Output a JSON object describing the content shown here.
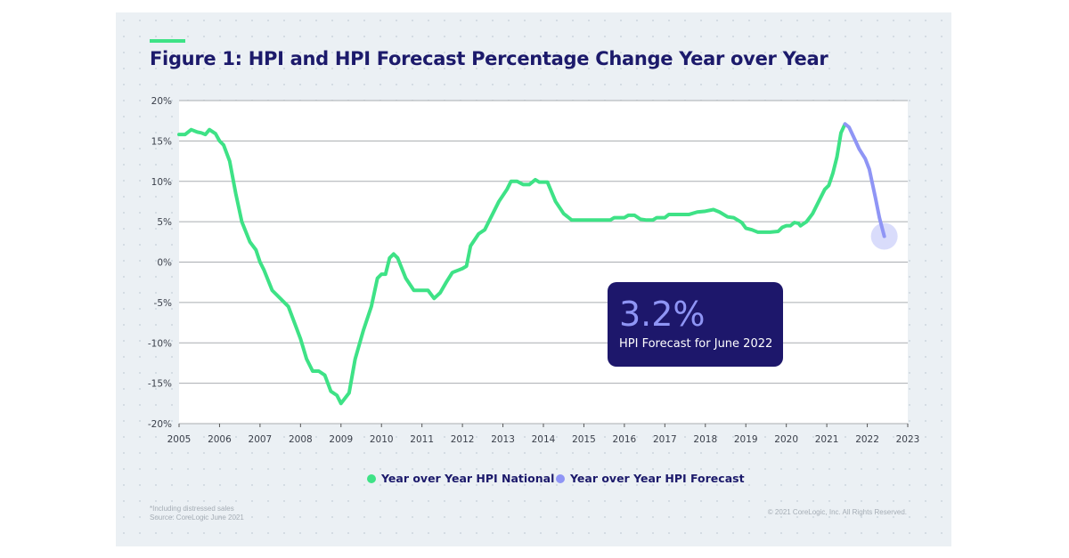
{
  "chart_data": {
    "type": "line",
    "title": "Figure 1: HPI and HPI Forecast Percentage Change Year over Year",
    "xlabel": "",
    "ylabel": "",
    "xlim": [
      2005,
      2023
    ],
    "ylim": [
      -20,
      20
    ],
    "x_ticks": [
      "2005",
      "2006",
      "2007",
      "2008",
      "2009",
      "2010",
      "2011",
      "2012",
      "2013",
      "2014",
      "2015",
      "2016",
      "2017",
      "2018",
      "2019",
      "2020",
      "2021",
      "2022",
      "2023"
    ],
    "y_ticks": [
      "20%",
      "15%",
      "10%",
      "5%",
      "0%",
      "-5%",
      "-10%",
      "-15%",
      "-20%"
    ],
    "grid": true,
    "legend_position": "bottom",
    "series": [
      {
        "name": "Year over Year HPI National",
        "color": "#3ee286",
        "points": [
          [
            2005.0,
            15.8
          ],
          [
            2005.15,
            15.8
          ],
          [
            2005.3,
            16.4
          ],
          [
            2005.45,
            16.1
          ],
          [
            2005.55,
            16.0
          ],
          [
            2005.65,
            15.8
          ],
          [
            2005.75,
            16.4
          ],
          [
            2005.9,
            15.9
          ],
          [
            2006.0,
            15.0
          ],
          [
            2006.1,
            14.5
          ],
          [
            2006.25,
            12.5
          ],
          [
            2006.4,
            8.5
          ],
          [
            2006.55,
            5
          ],
          [
            2006.75,
            2.5
          ],
          [
            2006.9,
            1.5
          ],
          [
            2007.0,
            0
          ],
          [
            2007.1,
            -1
          ],
          [
            2007.3,
            -3.5
          ],
          [
            2007.5,
            -4.5
          ],
          [
            2007.7,
            -5.5
          ],
          [
            2007.85,
            -7.5
          ],
          [
            2008.0,
            -9.5
          ],
          [
            2008.15,
            -12
          ],
          [
            2008.3,
            -13.5
          ],
          [
            2008.45,
            -13.5
          ],
          [
            2008.6,
            -14
          ],
          [
            2008.75,
            -16
          ],
          [
            2008.9,
            -16.5
          ],
          [
            2009.0,
            -17.5
          ],
          [
            2009.2,
            -16.2
          ],
          [
            2009.35,
            -12
          ],
          [
            2009.55,
            -8.5
          ],
          [
            2009.75,
            -5.5
          ],
          [
            2009.9,
            -2
          ],
          [
            2010.0,
            -1.5
          ],
          [
            2010.1,
            -1.5
          ],
          [
            2010.2,
            0.5
          ],
          [
            2010.3,
            1.0
          ],
          [
            2010.4,
            0.5
          ],
          [
            2010.6,
            -2
          ],
          [
            2010.8,
            -3.5
          ],
          [
            2011.0,
            -3.5
          ],
          [
            2011.15,
            -3.5
          ],
          [
            2011.3,
            -4.5
          ],
          [
            2011.45,
            -3.8
          ],
          [
            2011.6,
            -2.5
          ],
          [
            2011.75,
            -1.3
          ],
          [
            2011.9,
            -1
          ],
          [
            2012.0,
            -0.8
          ],
          [
            2012.1,
            -0.5
          ],
          [
            2012.2,
            2
          ],
          [
            2012.4,
            3.5
          ],
          [
            2012.55,
            4
          ],
          [
            2012.75,
            6
          ],
          [
            2012.9,
            7.5
          ],
          [
            2013.1,
            9
          ],
          [
            2013.2,
            10
          ],
          [
            2013.35,
            10
          ],
          [
            2013.5,
            9.6
          ],
          [
            2013.65,
            9.6
          ],
          [
            2013.8,
            10.2
          ],
          [
            2013.9,
            9.9
          ],
          [
            2014.1,
            9.9
          ],
          [
            2014.3,
            7.5
          ],
          [
            2014.5,
            6
          ],
          [
            2014.7,
            5.2
          ],
          [
            2015.0,
            5.2
          ],
          [
            2015.65,
            5.2
          ],
          [
            2015.75,
            5.5
          ],
          [
            2016.0,
            5.5
          ],
          [
            2016.1,
            5.8
          ],
          [
            2016.25,
            5.8
          ],
          [
            2016.4,
            5.3
          ],
          [
            2016.55,
            5.2
          ],
          [
            2016.7,
            5.2
          ],
          [
            2016.8,
            5.5
          ],
          [
            2017.0,
            5.5
          ],
          [
            2017.1,
            5.9
          ],
          [
            2017.6,
            5.9
          ],
          [
            2017.8,
            6.2
          ],
          [
            2018.0,
            6.3
          ],
          [
            2018.2,
            6.5
          ],
          [
            2018.35,
            6.2
          ],
          [
            2018.55,
            5.6
          ],
          [
            2018.7,
            5.5
          ],
          [
            2018.9,
            4.9
          ],
          [
            2019.0,
            4.2
          ],
          [
            2019.15,
            4.0
          ],
          [
            2019.3,
            3.7
          ],
          [
            2019.6,
            3.7
          ],
          [
            2019.8,
            3.8
          ],
          [
            2019.9,
            4.3
          ],
          [
            2020.0,
            4.5
          ],
          [
            2020.1,
            4.5
          ],
          [
            2020.2,
            4.9
          ],
          [
            2020.3,
            4.8
          ],
          [
            2020.35,
            4.5
          ],
          [
            2020.5,
            5
          ],
          [
            2020.65,
            6
          ],
          [
            2020.8,
            7.5
          ],
          [
            2020.95,
            9
          ],
          [
            2021.05,
            9.5
          ],
          [
            2021.15,
            11
          ],
          [
            2021.25,
            13
          ],
          [
            2021.35,
            16
          ],
          [
            2021.45,
            17.1
          ]
        ]
      },
      {
        "name": "Year over Year HPI Forecast",
        "color": "#8f95f5",
        "points": [
          [
            2021.45,
            17.1
          ],
          [
            2021.55,
            16.7
          ],
          [
            2021.7,
            15.1
          ],
          [
            2021.8,
            14
          ],
          [
            2021.95,
            12.8
          ],
          [
            2022.05,
            11.5
          ],
          [
            2022.2,
            8
          ],
          [
            2022.3,
            5.5
          ],
          [
            2022.42,
            3.2
          ]
        ]
      }
    ],
    "annotation": {
      "value": "3.2%",
      "label": "HPI Forecast for June 2022"
    }
  },
  "footnotes": {
    "note": "*Including distressed sales",
    "source": "Source: CoreLogic June 2021",
    "copyright": "© 2021 CoreLogic, Inc. All Rights Reserved."
  }
}
